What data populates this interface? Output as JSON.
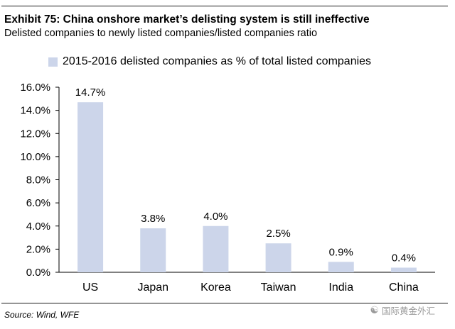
{
  "header": {
    "title": "Exhibit 75: China onshore market’s delisting system is still ineffective",
    "subtitle": "Delisted companies to newly listed companies/listed companies ratio"
  },
  "footer": {
    "source": "Source: Wind, WFE",
    "watermark": "国际黄金外汇",
    "watermark_icon": "wechat-icon"
  },
  "colors": {
    "bar": "#ccd5ea",
    "axis": "#000000"
  },
  "chart_data": {
    "type": "bar",
    "title": "Exhibit 75: China onshore market’s delisting system is still ineffective",
    "subtitle": "Delisted companies to newly listed companies/listed companies ratio",
    "categories": [
      "US",
      "Japan",
      "Korea",
      "Taiwan",
      "India",
      "China"
    ],
    "series": [
      {
        "name": "2015-2016 delisted companies as % of total listed companies",
        "values": [
          14.7,
          3.8,
          4.0,
          2.5,
          0.9,
          0.4
        ],
        "labels": [
          "14.7%",
          "3.8%",
          "4.0%",
          "2.5%",
          "0.9%",
          "0.4%"
        ]
      }
    ],
    "ylim": [
      0,
      16
    ],
    "yticks": [
      0,
      2,
      4,
      6,
      8,
      10,
      12,
      14,
      16
    ],
    "ytick_labels": [
      "0.0%",
      "2.0%",
      "4.0%",
      "6.0%",
      "8.0%",
      "10.0%",
      "12.0%",
      "14.0%",
      "16.0%"
    ],
    "xlabel": "",
    "ylabel": "",
    "grid": false,
    "legend_position": "top"
  }
}
